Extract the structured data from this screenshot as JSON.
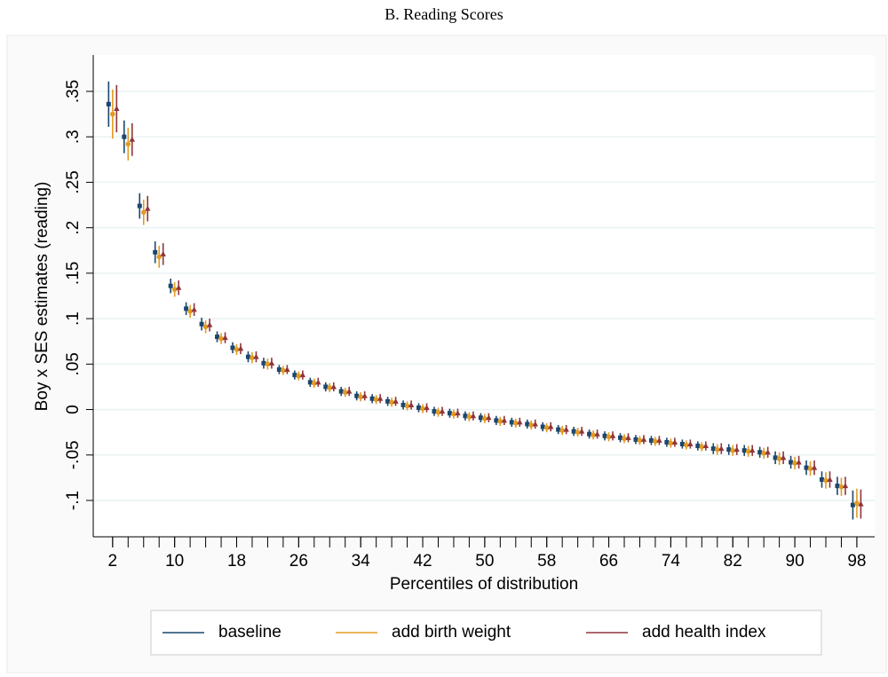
{
  "chart_data": {
    "type": "errorbar",
    "title": "B. Reading Scores",
    "xlabel": "Percentiles of distribution",
    "ylabel": "Boy x SES estimates (reading)",
    "x": [
      2,
      4,
      6,
      8,
      10,
      12,
      14,
      16,
      18,
      20,
      22,
      24,
      26,
      28,
      30,
      32,
      34,
      36,
      38,
      40,
      42,
      44,
      46,
      48,
      50,
      52,
      54,
      56,
      58,
      60,
      62,
      64,
      66,
      68,
      70,
      72,
      74,
      76,
      78,
      80,
      82,
      84,
      86,
      88,
      90,
      92,
      94,
      96,
      98
    ],
    "xlim": [
      -0.5,
      100.3
    ],
    "xticks": [
      2,
      10,
      18,
      26,
      34,
      42,
      50,
      58,
      66,
      74,
      82,
      90,
      98
    ],
    "ylim": [
      -0.14,
      0.39
    ],
    "yticks": [
      {
        "value": -0.1,
        "label": "-.1"
      },
      {
        "value": -0.05,
        "label": "-.05"
      },
      0,
      {
        "value": 0.05,
        "label": ".05"
      },
      {
        "value": 0.1,
        "label": ".1"
      },
      {
        "value": 0.15,
        "label": ".15"
      },
      {
        "value": 0.2,
        "label": ".2"
      },
      {
        "value": 0.25,
        "label": ".25"
      },
      {
        "value": 0.3,
        "label": ".3"
      },
      {
        "value": 0.35,
        "label": ".35"
      }
    ],
    "grid": true,
    "legend": "bottom",
    "series": [
      {
        "name": "baseline",
        "color": "#1a476f",
        "marker": "square",
        "values": [
          0.336,
          0.3,
          0.224,
          0.173,
          0.136,
          0.111,
          0.094,
          0.08,
          0.068,
          0.058,
          0.051,
          0.044,
          0.038,
          0.03,
          0.025,
          0.02,
          0.015,
          0.012,
          0.009,
          0.005,
          0.002,
          -0.002,
          -0.004,
          -0.007,
          -0.009,
          -0.012,
          -0.014,
          -0.016,
          -0.019,
          -0.022,
          -0.024,
          -0.027,
          -0.029,
          -0.031,
          -0.033,
          -0.034,
          -0.036,
          -0.038,
          -0.04,
          -0.043,
          -0.044,
          -0.045,
          -0.047,
          -0.053,
          -0.058,
          -0.064,
          -0.077,
          -0.084,
          -0.105
        ],
        "errors": [
          0.025,
          0.018,
          0.014,
          0.012,
          0.008,
          0.007,
          0.007,
          0.006,
          0.006,
          0.006,
          0.006,
          0.005,
          0.005,
          0.005,
          0.005,
          0.005,
          0.005,
          0.005,
          0.005,
          0.005,
          0.005,
          0.005,
          0.005,
          0.005,
          0.005,
          0.005,
          0.005,
          0.005,
          0.005,
          0.005,
          0.005,
          0.005,
          0.005,
          0.005,
          0.005,
          0.005,
          0.005,
          0.005,
          0.005,
          0.006,
          0.006,
          0.006,
          0.006,
          0.007,
          0.007,
          0.008,
          0.009,
          0.01,
          0.016
        ]
      },
      {
        "name": "add birth weight",
        "color": "#e39b22",
        "marker": "circle",
        "values": [
          0.325,
          0.292,
          0.217,
          0.168,
          0.132,
          0.108,
          0.091,
          0.078,
          0.066,
          0.057,
          0.05,
          0.043,
          0.037,
          0.029,
          0.024,
          0.019,
          0.014,
          0.011,
          0.008,
          0.004,
          0.001,
          -0.003,
          -0.005,
          -0.008,
          -0.01,
          -0.013,
          -0.015,
          -0.017,
          -0.02,
          -0.023,
          -0.025,
          -0.028,
          -0.03,
          -0.032,
          -0.034,
          -0.035,
          -0.037,
          -0.039,
          -0.041,
          -0.044,
          -0.045,
          -0.046,
          -0.048,
          -0.054,
          -0.059,
          -0.065,
          -0.078,
          -0.085,
          -0.103
        ],
        "errors": [
          0.027,
          0.018,
          0.014,
          0.012,
          0.008,
          0.007,
          0.007,
          0.006,
          0.006,
          0.006,
          0.006,
          0.005,
          0.005,
          0.005,
          0.005,
          0.005,
          0.005,
          0.005,
          0.005,
          0.005,
          0.005,
          0.005,
          0.005,
          0.005,
          0.005,
          0.005,
          0.005,
          0.005,
          0.005,
          0.005,
          0.005,
          0.005,
          0.005,
          0.005,
          0.005,
          0.005,
          0.005,
          0.005,
          0.005,
          0.006,
          0.006,
          0.006,
          0.006,
          0.007,
          0.007,
          0.008,
          0.009,
          0.01,
          0.016
        ]
      },
      {
        "name": "add health index",
        "color": "#90353b",
        "marker": "triangle",
        "values": [
          0.331,
          0.297,
          0.221,
          0.171,
          0.134,
          0.11,
          0.093,
          0.079,
          0.067,
          0.058,
          0.051,
          0.044,
          0.038,
          0.03,
          0.025,
          0.02,
          0.015,
          0.012,
          0.009,
          0.005,
          0.002,
          -0.002,
          -0.004,
          -0.007,
          -0.009,
          -0.012,
          -0.014,
          -0.016,
          -0.019,
          -0.022,
          -0.024,
          -0.027,
          -0.029,
          -0.031,
          -0.033,
          -0.034,
          -0.036,
          -0.038,
          -0.04,
          -0.043,
          -0.044,
          -0.045,
          -0.047,
          -0.053,
          -0.058,
          -0.064,
          -0.077,
          -0.084,
          -0.104
        ],
        "errors": [
          0.026,
          0.018,
          0.014,
          0.012,
          0.008,
          0.007,
          0.007,
          0.006,
          0.006,
          0.006,
          0.006,
          0.005,
          0.005,
          0.005,
          0.005,
          0.005,
          0.005,
          0.005,
          0.005,
          0.005,
          0.005,
          0.005,
          0.005,
          0.005,
          0.005,
          0.005,
          0.005,
          0.005,
          0.005,
          0.005,
          0.005,
          0.005,
          0.005,
          0.005,
          0.005,
          0.005,
          0.005,
          0.005,
          0.005,
          0.006,
          0.006,
          0.006,
          0.006,
          0.007,
          0.007,
          0.008,
          0.009,
          0.01,
          0.016
        ]
      }
    ]
  }
}
